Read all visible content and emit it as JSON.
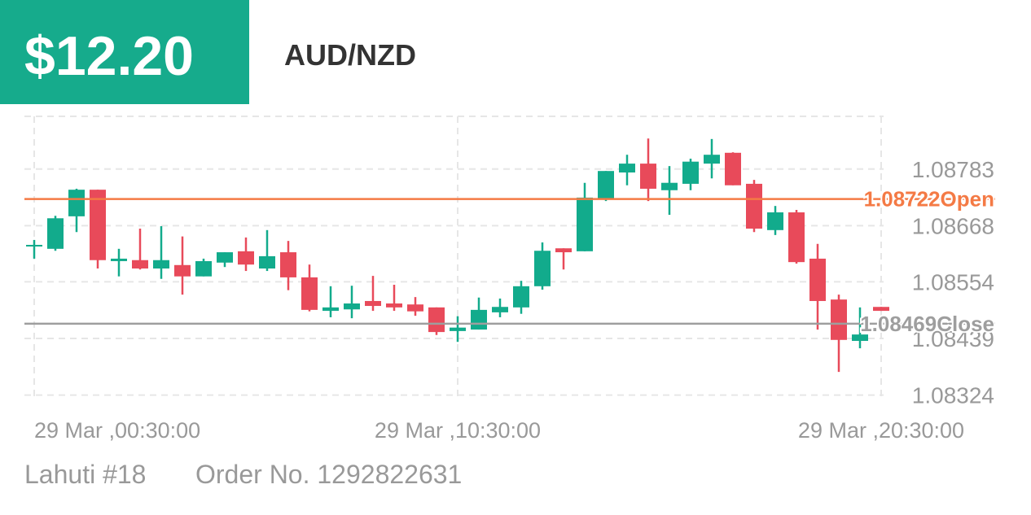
{
  "header": {
    "amount": "$12.20",
    "pair": "AUD/NZD"
  },
  "footer": {
    "account": "Lahuti #18",
    "order": "Order No. 1292822631"
  },
  "chart_data": {
    "type": "candlestick",
    "categories": [
      "29 Mar ,00:30:00",
      null,
      null,
      null,
      null,
      null,
      null,
      null,
      null,
      null,
      null,
      null,
      null,
      null,
      null,
      null,
      null,
      null,
      null,
      null,
      "29 Mar ,10:30:00",
      null,
      null,
      null,
      null,
      null,
      null,
      null,
      null,
      null,
      null,
      null,
      null,
      null,
      null,
      null,
      null,
      null,
      null,
      null,
      "29 Mar ,20:30:00"
    ],
    "open": [
      1.08626,
      1.08621,
      1.08687,
      1.08741,
      1.08596,
      1.08598,
      1.08581,
      1.08588,
      1.08565,
      1.08593,
      1.08616,
      1.08581,
      1.08614,
      1.08563,
      1.08495,
      1.08498,
      1.08515,
      1.0851,
      1.08508,
      1.08502,
      1.08454,
      1.08457,
      1.08492,
      1.08502,
      1.08545,
      1.08622,
      1.08616,
      1.08721,
      1.08776,
      1.08794,
      1.0874,
      1.08753,
      1.08794,
      1.08816,
      1.08753,
      1.08659,
      1.08695,
      1.08601,
      1.08518,
      1.08434,
      1.08503
    ],
    "high": [
      1.08639,
      1.08688,
      1.08743,
      1.08741,
      1.08621,
      1.08662,
      1.08667,
      1.08646,
      1.08601,
      1.08614,
      1.08644,
      1.08659,
      1.08637,
      1.08589,
      1.08545,
      1.08546,
      1.08566,
      1.08548,
      1.08523,
      1.08502,
      1.08484,
      1.08522,
      1.0852,
      1.08556,
      1.08634,
      1.08622,
      1.08755,
      1.08779,
      1.08812,
      1.08845,
      1.08789,
      1.08804,
      1.08844,
      1.08817,
      1.08761,
      1.08708,
      1.087,
      1.08631,
      1.08528,
      1.08502,
      1.08503
    ],
    "low": [
      1.08601,
      1.08617,
      1.08655,
      1.08581,
      1.08565,
      1.08579,
      1.0856,
      1.08528,
      1.08565,
      1.08584,
      1.08576,
      1.08576,
      1.08537,
      1.08494,
      1.08482,
      1.0848,
      1.08495,
      1.08495,
      1.08485,
      1.08446,
      1.08432,
      1.08457,
      1.08482,
      1.08489,
      1.08538,
      1.08579,
      1.08616,
      1.08718,
      1.0875,
      1.08718,
      1.0869,
      1.0874,
      1.08764,
      1.0875,
      1.08655,
      1.08649,
      1.08591,
      1.08457,
      1.08371,
      1.08419,
      1.08495
    ],
    "close": [
      1.08629,
      1.08683,
      1.08741,
      1.08598,
      1.08601,
      1.08581,
      1.08598,
      1.08565,
      1.08596,
      1.08614,
      1.08589,
      1.08606,
      1.08563,
      1.08497,
      1.08502,
      1.0851,
      1.08505,
      1.08502,
      1.08494,
      1.08452,
      1.08461,
      1.08497,
      1.08503,
      1.08545,
      1.08617,
      1.08614,
      1.08725,
      1.08779,
      1.08794,
      1.08743,
      1.08755,
      1.08798,
      1.08812,
      1.0875,
      1.08662,
      1.08695,
      1.08594,
      1.08515,
      1.08436,
      1.08447,
      1.08495
    ],
    "up_color": "#12ab8c",
    "down_color": "#e84a5a",
    "ylim": [
      1.0832,
      1.0889
    ],
    "yticks": [
      1.08324,
      1.08439,
      1.08554,
      1.08668,
      1.08783
    ],
    "grid": true,
    "reference_lines": [
      {
        "name": "Open",
        "value": 1.08722,
        "color": "#f47a45"
      },
      {
        "name": "Close",
        "value": 1.08469,
        "color": "#9e9e9e"
      }
    ]
  }
}
